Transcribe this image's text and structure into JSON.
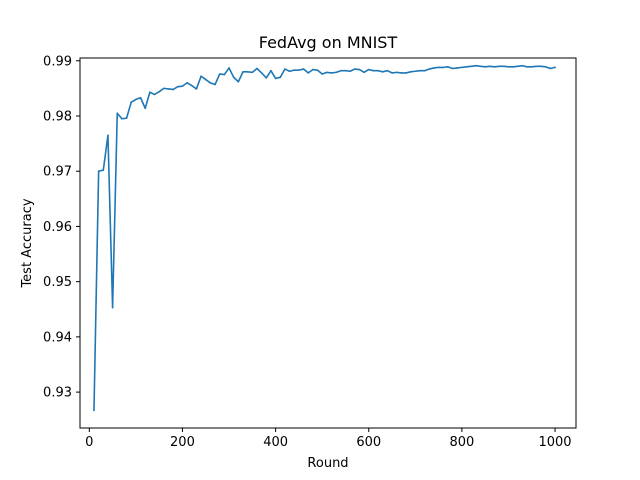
{
  "chart_data": {
    "type": "line",
    "title": "FedAvg on MNIST",
    "xlabel": "Round",
    "ylabel": "Test Accuracy",
    "xlim": [
      -20,
      1045
    ],
    "ylim": [
      0.9235,
      0.9905
    ],
    "xticks": [
      0,
      200,
      400,
      600,
      800,
      1000
    ],
    "xtick_labels": [
      "0",
      "200",
      "400",
      "600",
      "800",
      "1000"
    ],
    "yticks": [
      0.93,
      0.94,
      0.95,
      0.96,
      0.97,
      0.98,
      0.99
    ],
    "ytick_labels": [
      "0.93",
      "0.94",
      "0.95",
      "0.96",
      "0.97",
      "0.98",
      "0.99"
    ],
    "grid": false,
    "legend": "none",
    "series_color": "#1f77b4",
    "series": [
      {
        "x": [
          10,
          20,
          30,
          40,
          50,
          60,
          70,
          80,
          90,
          100,
          110,
          120,
          130,
          140,
          150,
          160,
          170,
          180,
          190,
          200,
          210,
          220,
          230,
          240,
          250,
          260,
          270,
          280,
          290,
          300,
          310,
          320,
          330,
          340,
          350,
          360,
          370,
          380,
          390,
          400,
          410,
          420,
          430,
          440,
          450,
          460,
          470,
          480,
          490,
          500,
          510,
          520,
          530,
          540,
          550,
          560,
          570,
          580,
          590,
          600,
          610,
          620,
          630,
          640,
          650,
          660,
          670,
          680,
          690,
          700,
          710,
          720,
          730,
          740,
          750,
          760,
          770,
          780,
          790,
          800,
          810,
          820,
          830,
          840,
          850,
          860,
          870,
          880,
          890,
          900,
          910,
          920,
          930,
          940,
          950,
          960,
          970,
          980,
          990,
          1000
        ],
        "values": [
          0.9267,
          0.97,
          0.9702,
          0.9765,
          0.9453,
          0.9805,
          0.9795,
          0.9796,
          0.9825,
          0.983,
          0.9833,
          0.9814,
          0.9843,
          0.9839,
          0.9844,
          0.985,
          0.9849,
          0.9848,
          0.9853,
          0.9854,
          0.986,
          0.9855,
          0.9849,
          0.9872,
          0.9866,
          0.986,
          0.9857,
          0.9876,
          0.9875,
          0.9887,
          0.987,
          0.9862,
          0.988,
          0.988,
          0.9879,
          0.9886,
          0.9878,
          0.9869,
          0.9882,
          0.9868,
          0.987,
          0.9885,
          0.9881,
          0.9883,
          0.9883,
          0.9885,
          0.9878,
          0.9884,
          0.9883,
          0.9876,
          0.9879,
          0.9878,
          0.9879,
          0.9882,
          0.9882,
          0.9881,
          0.9885,
          0.9884,
          0.9879,
          0.9884,
          0.9882,
          0.9882,
          0.988,
          0.9882,
          0.9878,
          0.9879,
          0.9878,
          0.9878,
          0.988,
          0.9881,
          0.9882,
          0.9882,
          0.9885,
          0.9887,
          0.9888,
          0.9888,
          0.9889,
          0.9886,
          0.9887,
          0.9888,
          0.9889,
          0.989,
          0.9891,
          0.989,
          0.9889,
          0.989,
          0.9889,
          0.989,
          0.989,
          0.9889,
          0.9889,
          0.989,
          0.9891,
          0.9889,
          0.9889,
          0.989,
          0.989,
          0.9889,
          0.9886,
          0.9888
        ]
      }
    ]
  }
}
